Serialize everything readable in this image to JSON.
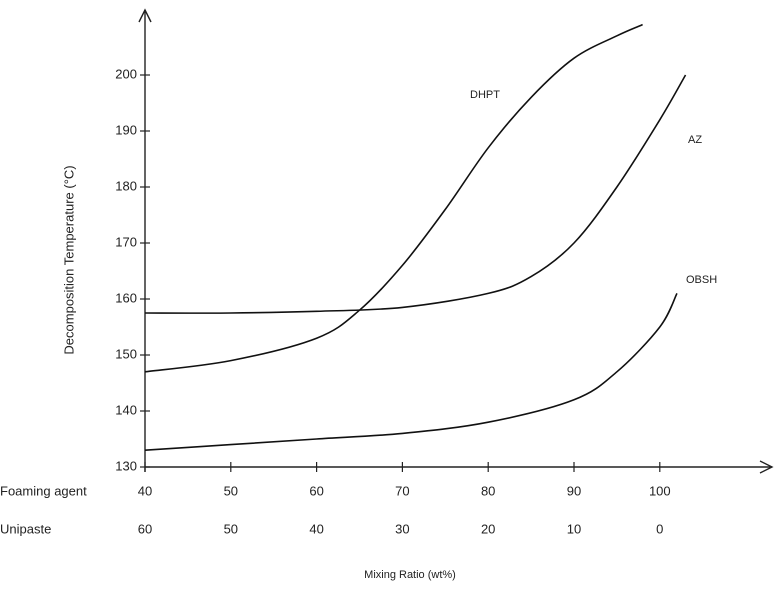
{
  "chart_data": {
    "type": "line",
    "y_label": "Decomposition Temperature (°C)",
    "x_label": "Mixing Ratio (wt%)",
    "x_row_label": "Foaming agent",
    "x2_row_label": "Unipaste",
    "xlim": [
      40,
      113
    ],
    "xticks": [
      40,
      50,
      60,
      70,
      80,
      90,
      100
    ],
    "x2ticks": [
      60,
      50,
      40,
      30,
      20,
      10,
      0
    ],
    "ylim": [
      130,
      210
    ],
    "yticks": [
      130,
      140,
      150,
      160,
      170,
      180,
      190,
      200
    ],
    "series": [
      {
        "name": "DHPT",
        "color": "#111111",
        "x": [
          40,
          50,
          60,
          65,
          70,
          75,
          80,
          85,
          90,
          95,
          98
        ],
        "values": [
          147,
          149,
          153,
          158,
          166,
          176,
          187,
          196,
          203,
          207,
          209
        ]
      },
      {
        "name": "AZ",
        "color": "#111111",
        "x": [
          40,
          50,
          60,
          70,
          80,
          85,
          90,
          95,
          100,
          103
        ],
        "values": [
          157.5,
          157.5,
          157.8,
          158.5,
          161,
          164,
          170,
          180,
          192,
          200
        ]
      },
      {
        "name": "OBSH",
        "color": "#111111",
        "x": [
          40,
          50,
          60,
          70,
          80,
          90,
          95,
          100,
          102
        ],
        "values": [
          133,
          134,
          135,
          136,
          138,
          142,
          147,
          155,
          161
        ]
      }
    ]
  }
}
